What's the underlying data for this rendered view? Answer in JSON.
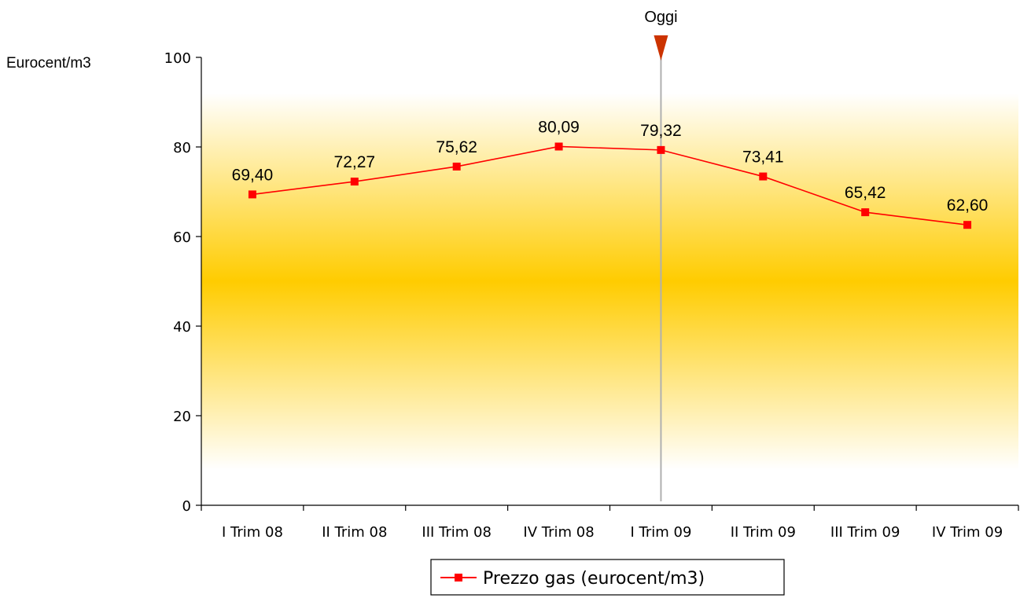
{
  "chart_data": {
    "type": "line",
    "ylabel": "Eurocent/m3",
    "ylim": [
      0,
      100
    ],
    "ytick_step": 20,
    "yticks": [
      "0",
      "20",
      "40",
      "60",
      "80",
      "100"
    ],
    "categories": [
      "I Trim 08",
      "II Trim 08",
      "III Trim 08",
      "IV Trim 08",
      "I Trim 09",
      "II Trim 09",
      "III Trim 09",
      "IV Trim 09"
    ],
    "series": [
      {
        "name": "Prezzo gas (eurocent/m3)",
        "values": [
          69.4,
          72.27,
          75.62,
          80.09,
          79.32,
          73.41,
          65.42,
          62.6
        ],
        "labels": [
          "69,40",
          "72,27",
          "75,62",
          "80,09",
          "79,32",
          "73,41",
          "65,42",
          "62,60"
        ],
        "color": "#ff0000"
      }
    ],
    "marker": {
      "label": "Oggi",
      "category_index": 4,
      "color": "#cc3300",
      "line_color": "#b0b0b0"
    },
    "background_band": {
      "color": "#ffcc00",
      "center_value": 50
    },
    "grid": false,
    "legend_position": "bottom-center"
  }
}
